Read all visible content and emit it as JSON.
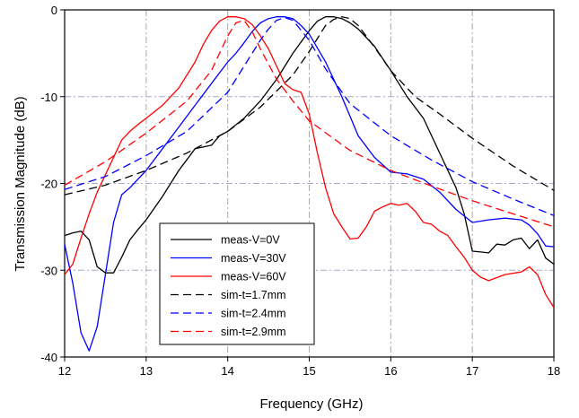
{
  "chart_data": {
    "type": "line",
    "title": "",
    "xlabel": "Frequency (GHz)",
    "ylabel": "Transmission Magnitude (dB)",
    "xlim": [
      12,
      18
    ],
    "ylim": [
      -40,
      0
    ],
    "xticks": [
      12,
      13,
      14,
      15,
      16,
      17,
      18
    ],
    "yticks": [
      0,
      -10,
      -20,
      -30,
      -40
    ],
    "grid": true,
    "legend_position": "bottom-left",
    "series": [
      {
        "name": "meas-V=0V",
        "color": "#000000",
        "dash": "solid",
        "x": [
          12.0,
          12.1,
          12.2,
          12.3,
          12.4,
          12.5,
          12.6,
          12.7,
          12.8,
          12.9,
          13.0,
          13.2,
          13.4,
          13.6,
          13.7,
          13.8,
          13.9,
          14.0,
          14.2,
          14.4,
          14.6,
          14.8,
          15.0,
          15.1,
          15.2,
          15.3,
          15.4,
          15.5,
          15.6,
          15.8,
          16.0,
          16.2,
          16.4,
          16.6,
          16.8,
          16.9,
          17.0,
          17.1,
          17.2,
          17.3,
          17.4,
          17.5,
          17.6,
          17.7,
          17.8,
          17.9,
          18.0
        ],
        "y": [
          -26.0,
          -25.7,
          -25.5,
          -26.5,
          -29.6,
          -30.3,
          -30.3,
          -28.5,
          -26.5,
          -25.3,
          -24.2,
          -21.5,
          -18.5,
          -16.0,
          -15.8,
          -15.6,
          -14.5,
          -14.0,
          -12.5,
          -10.5,
          -8.0,
          -5.0,
          -2.4,
          -1.3,
          -0.8,
          -0.8,
          -1.0,
          -1.5,
          -2.2,
          -4.2,
          -7.0,
          -10.0,
          -12.5,
          -16.5,
          -20.5,
          -23.5,
          -27.8,
          -27.9,
          -28.0,
          -27.0,
          -27.1,
          -26.5,
          -26.3,
          -27.5,
          -26.5,
          -28.6,
          -29.3
        ]
      },
      {
        "name": "meas-V=30V",
        "color": "#0000ff",
        "dash": "solid",
        "x": [
          12.0,
          12.1,
          12.2,
          12.3,
          12.4,
          12.5,
          12.6,
          12.7,
          12.8,
          13.0,
          13.2,
          13.4,
          13.6,
          13.8,
          14.0,
          14.1,
          14.2,
          14.3,
          14.4,
          14.5,
          14.6,
          14.7,
          14.8,
          14.9,
          15.0,
          15.2,
          15.4,
          15.6,
          15.8,
          16.0,
          16.2,
          16.4,
          16.6,
          16.8,
          17.0,
          17.2,
          17.4,
          17.6,
          17.7,
          17.8,
          17.9,
          18.0
        ],
        "y": [
          -27.0,
          -31.5,
          -37.2,
          -39.3,
          -36.5,
          -30.5,
          -24.5,
          -21.3,
          -20.5,
          -18.5,
          -16.0,
          -13.5,
          -11.0,
          -8.5,
          -6.0,
          -5.0,
          -3.8,
          -2.5,
          -1.5,
          -1.0,
          -0.8,
          -0.8,
          -1.0,
          -1.8,
          -2.8,
          -6.0,
          -10.0,
          -14.5,
          -17.0,
          -18.7,
          -18.9,
          -19.5,
          -21.0,
          -23.0,
          -24.5,
          -24.2,
          -24.0,
          -24.2,
          -24.8,
          -25.8,
          -27.2,
          -27.3
        ]
      },
      {
        "name": "meas-V=60V",
        "color": "#ff0000",
        "dash": "solid",
        "x": [
          12.0,
          12.1,
          12.2,
          12.3,
          12.4,
          12.5,
          12.6,
          12.7,
          12.8,
          12.9,
          13.0,
          13.2,
          13.4,
          13.6,
          13.7,
          13.8,
          13.9,
          14.0,
          14.1,
          14.2,
          14.3,
          14.4,
          14.5,
          14.6,
          14.7,
          14.8,
          14.9,
          15.0,
          15.1,
          15.2,
          15.3,
          15.4,
          15.5,
          15.6,
          15.7,
          15.8,
          15.9,
          16.0,
          16.1,
          16.2,
          16.3,
          16.4,
          16.5,
          16.6,
          16.7,
          16.8,
          16.9,
          17.0,
          17.1,
          17.2,
          17.4,
          17.6,
          17.7,
          17.8,
          17.9,
          18.0
        ],
        "y": [
          -30.5,
          -29.3,
          -26.3,
          -23.5,
          -21.0,
          -19.0,
          -17.0,
          -15.0,
          -14.0,
          -13.2,
          -12.5,
          -11.0,
          -9.0,
          -6.0,
          -4.0,
          -2.4,
          -1.3,
          -0.8,
          -0.8,
          -1.0,
          -1.7,
          -3.0,
          -4.5,
          -6.5,
          -8.5,
          -9.2,
          -9.5,
          -12.0,
          -16.5,
          -20.5,
          -23.5,
          -25.0,
          -26.4,
          -26.3,
          -25.0,
          -23.2,
          -22.7,
          -22.3,
          -22.5,
          -22.3,
          -23.2,
          -24.5,
          -24.7,
          -25.5,
          -26.0,
          -27.3,
          -28.5,
          -30.0,
          -30.8,
          -31.2,
          -30.5,
          -30.2,
          -29.6,
          -30.5,
          -32.8,
          -34.3
        ]
      },
      {
        "name": "sim-t=1.7mm",
        "color": "#000000",
        "dash": "dashed",
        "x": [
          12.0,
          12.5,
          13.0,
          13.5,
          14.0,
          14.4,
          14.8,
          15.0,
          15.1,
          15.2,
          15.3,
          15.4,
          15.5,
          15.6,
          15.8,
          16.0,
          16.3,
          16.6,
          17.0,
          17.5,
          18.0
        ],
        "y": [
          -21.3,
          -20.2,
          -18.5,
          -16.5,
          -14.0,
          -11.2,
          -7.5,
          -4.8,
          -3.3,
          -1.8,
          -1.1,
          -0.8,
          -1.0,
          -1.8,
          -4.3,
          -7.0,
          -10.0,
          -12.0,
          -14.8,
          -18.0,
          -20.8
        ]
      },
      {
        "name": "sim-t=2.4mm",
        "color": "#0000ff",
        "dash": "dashed",
        "x": [
          12.0,
          12.5,
          13.0,
          13.5,
          14.0,
          14.2,
          14.4,
          14.5,
          14.6,
          14.7,
          14.8,
          15.0,
          15.2,
          15.5,
          16.0,
          16.5,
          17.0,
          17.5,
          18.0
        ],
        "y": [
          -20.7,
          -19.2,
          -16.8,
          -14.0,
          -9.5,
          -6.5,
          -3.5,
          -2.2,
          -1.2,
          -0.9,
          -1.2,
          -3.5,
          -6.8,
          -10.8,
          -14.5,
          -17.3,
          -19.8,
          -21.8,
          -23.7
        ]
      },
      {
        "name": "sim-t=2.9mm",
        "color": "#ff0000",
        "dash": "dashed",
        "x": [
          12.0,
          12.5,
          13.0,
          13.5,
          13.8,
          14.0,
          14.1,
          14.2,
          14.3,
          14.4,
          14.6,
          14.8,
          15.0,
          15.5,
          16.0,
          16.5,
          17.0,
          17.5,
          18.0
        ],
        "y": [
          -20.2,
          -17.5,
          -14.2,
          -10.5,
          -7.0,
          -3.0,
          -1.5,
          -1.2,
          -2.5,
          -4.5,
          -8.0,
          -10.5,
          -12.8,
          -16.2,
          -18.5,
          -20.3,
          -22.0,
          -23.5,
          -25.0
        ]
      }
    ]
  }
}
